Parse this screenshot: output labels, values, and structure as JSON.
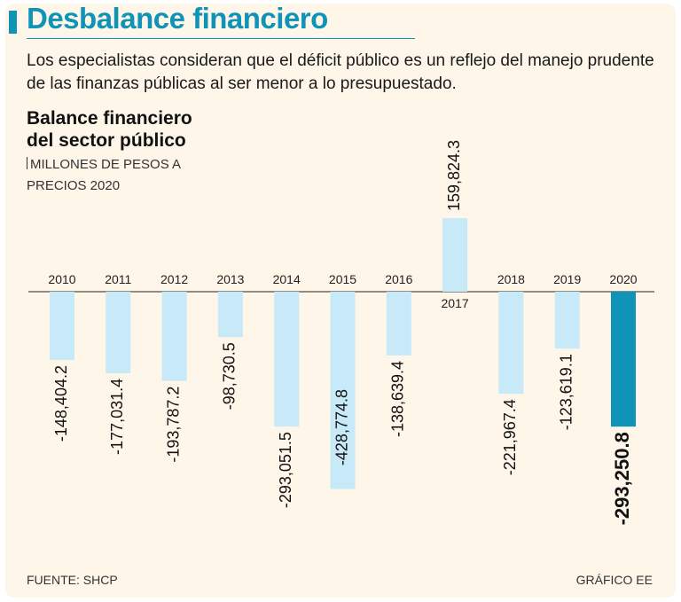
{
  "header": {
    "title": "Desbalance financiero",
    "subtitle": "Los especialistas consideran que el déficit público es un reflejo del manejo prudente de las finanzas públicas al ser menor a lo presupuestado."
  },
  "chart_data": {
    "type": "bar",
    "title_line1": "Balance financiero",
    "title_line2": "del sector público",
    "units_line1": "MILLONES DE PESOS A",
    "units_line2": "PRECIOS 2020",
    "categories": [
      "2010",
      "2011",
      "2012",
      "2013",
      "2014",
      "2015",
      "2016",
      "2017",
      "2018",
      "2019",
      "2020"
    ],
    "values": [
      -148404.2,
      -177031.4,
      -193787.2,
      -98730.5,
      -293051.5,
      -428774.8,
      -138639.4,
      159824.3,
      -221967.4,
      -123619.1,
      -293250.8
    ],
    "labels": [
      "-148,404.2",
      "-177,031.4",
      "-193,787.2",
      "-98,730.5",
      "-293,051.5",
      "-428,774.8",
      "-138,639.4",
      "159,824.3",
      "-221,967.4",
      "-123,619.1",
      "-293,250.8"
    ],
    "highlight": "2020",
    "xlabel": "",
    "ylabel": "",
    "ylim": [
      -428774.8,
      159824.3
    ]
  },
  "footer": {
    "source": "FUENTE: SHCP",
    "credit": "GRÁFICO EE"
  },
  "colors": {
    "accent": "#0f93b7",
    "bar": "#c8e9f8",
    "highlight_bar": "#0f93b7",
    "background": "#fdf6e9"
  }
}
